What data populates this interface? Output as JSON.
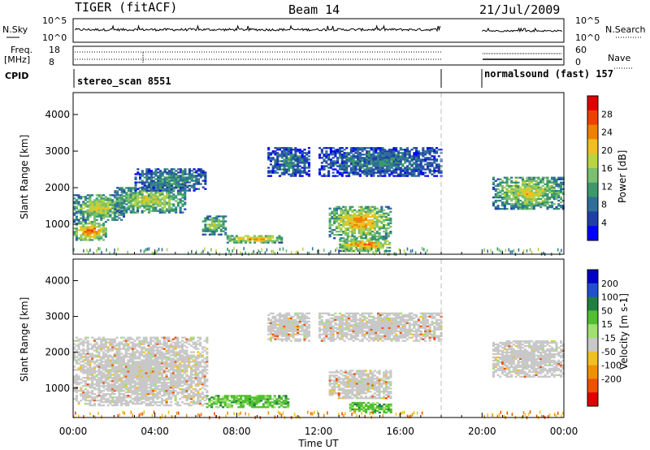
{
  "header": {
    "title": "TIGER (fitACF)",
    "beam": "Beam 14",
    "date": "21/Jul/2009"
  },
  "top_panels": {
    "nsky_label": "N.Sky",
    "nsky_ticks": [
      "10^5",
      "10^0"
    ],
    "nsearch_label": "N.Search",
    "nsearch_ticks": [
      "10^5",
      "10^0"
    ],
    "freq_label_line1": "Freq.",
    "freq_label_line2": "[MHz]",
    "freq_ticks": [
      "18",
      "8"
    ],
    "nave_label": "Nave",
    "nave_ticks": [
      "60",
      "0"
    ],
    "cpid_label": "CPID",
    "cpid_segments": [
      {
        "label": "stereo_scan 8551",
        "start_hour": 0,
        "end_hour": 18
      },
      {
        "label": "normalsound (fast) 157",
        "start_hour": 20,
        "end_hour": 24
      }
    ]
  },
  "x_axis": {
    "title": "Time UT",
    "tick_labels": [
      "00:00",
      "04:00",
      "08:00",
      "12:00",
      "16:00",
      "20:00",
      "00:00"
    ],
    "range_hours": [
      0,
      24
    ],
    "data_gap_hours": [
      18,
      20
    ]
  },
  "chart_data": [
    {
      "type": "heatmap",
      "name": "power",
      "ylabel": "Slant Range [km]",
      "ylim": [
        180,
        4600
      ],
      "y_ticks": [
        "1000",
        "2000",
        "3000",
        "4000"
      ],
      "colorbar_label": "Power [dB]",
      "colorbar_ticks": [
        "4",
        "8",
        "12",
        "16",
        "20",
        "24",
        "28"
      ],
      "colorbar_range": [
        0,
        32
      ],
      "colors": [
        "#0000ff",
        "#1f3fa8",
        "#2f6f9a",
        "#3a9a6a",
        "#7ac070",
        "#b8d440",
        "#f0c020",
        "#f08000",
        "#f04000",
        "#e00000"
      ],
      "echo_regions": [
        {
          "t_start": 0.0,
          "t_end": 1.6,
          "r_low": 550,
          "r_high": 1050,
          "db": 27
        },
        {
          "t_start": 0.0,
          "t_end": 2.5,
          "r_low": 1100,
          "r_high": 1800,
          "db": 20
        },
        {
          "t_start": 2.0,
          "t_end": 5.5,
          "r_low": 1300,
          "r_high": 2000,
          "db": 19
        },
        {
          "t_start": 3.0,
          "t_end": 6.5,
          "r_low": 1900,
          "r_high": 2500,
          "db": 12
        },
        {
          "t_start": 6.3,
          "t_end": 7.5,
          "r_low": 700,
          "r_high": 1200,
          "db": 18
        },
        {
          "t_start": 7.5,
          "t_end": 10.2,
          "r_low": 480,
          "r_high": 680,
          "db": 26
        },
        {
          "t_start": 9.5,
          "t_end": 11.5,
          "r_low": 2300,
          "r_high": 3100,
          "db": 10
        },
        {
          "t_start": 12.5,
          "t_end": 15.5,
          "r_low": 600,
          "r_high": 1500,
          "db": 24
        },
        {
          "t_start": 13.0,
          "t_end": 15.5,
          "r_low": 250,
          "r_high": 600,
          "db": 26
        },
        {
          "t_start": 12.0,
          "t_end": 18.0,
          "r_low": 2300,
          "r_high": 3100,
          "db": 10
        },
        {
          "t_start": 20.5,
          "t_end": 24.0,
          "r_low": 1400,
          "r_high": 2300,
          "db": 20
        }
      ]
    },
    {
      "type": "heatmap",
      "name": "velocity",
      "ylabel": "Slant Range [km]",
      "ylim": [
        180,
        4600
      ],
      "y_ticks": [
        "1000",
        "2000",
        "3000",
        "4000"
      ],
      "colorbar_label": "Velocity [m s-1]",
      "colorbar_ticks": [
        "200",
        "100",
        "50",
        "15",
        "-15",
        "-50",
        "-100",
        "-200"
      ],
      "colors": [
        "#0000c8",
        "#2050d0",
        "#208040",
        "#50c030",
        "#a0e070",
        "#c8c8c8",
        "#f0c020",
        "#f09000",
        "#f05000",
        "#e00000"
      ],
      "echo_regions": [
        {
          "t_start": 0.0,
          "t_end": 6.5,
          "r_low": 500,
          "r_high": 2400,
          "class": "low"
        },
        {
          "t_start": 9.5,
          "t_end": 11.5,
          "r_low": 2300,
          "r_high": 3100,
          "class": "low"
        },
        {
          "t_start": 12.0,
          "t_end": 18.0,
          "r_low": 2300,
          "r_high": 3100,
          "class": "low"
        },
        {
          "t_start": 12.5,
          "t_end": 15.5,
          "r_low": 700,
          "r_high": 1500,
          "class": "low"
        },
        {
          "t_start": 20.5,
          "t_end": 24.0,
          "r_low": 1300,
          "r_high": 2300,
          "class": "low"
        },
        {
          "t_start": 6.5,
          "t_end": 10.5,
          "r_low": 450,
          "r_high": 800,
          "class": "toward"
        },
        {
          "t_start": 13.5,
          "t_end": 15.5,
          "r_low": 300,
          "r_high": 600,
          "class": "toward"
        }
      ]
    }
  ]
}
